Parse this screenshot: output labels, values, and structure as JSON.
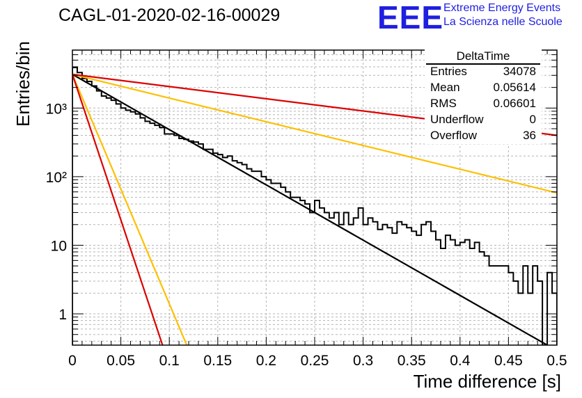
{
  "header": {
    "title": "CAGL-01-2020-02-16-00029",
    "logo_text": "EEE",
    "logo_line1": "Extreme Energy Events",
    "logo_line2": "La Scienza nelle Scuole"
  },
  "stats": {
    "name": "DeltaTime",
    "rows": [
      {
        "label": "Entries",
        "value": "34078"
      },
      {
        "label": "Mean",
        "value": "0.05614"
      },
      {
        "label": "RMS",
        "value": "0.06601"
      },
      {
        "label": "Underflow",
        "value": "0"
      },
      {
        "label": "Overflow",
        "value": "36"
      }
    ]
  },
  "chart_data": {
    "type": "histogram",
    "xlabel": "Time difference [s]",
    "ylabel": "Entries/bin",
    "xlim": [
      0,
      0.5
    ],
    "ylim": [
      0.35,
      7000
    ],
    "y_scale": "log",
    "grid": true,
    "x_ticks": [
      "0",
      "0.05",
      "0.1",
      "0.15",
      "0.2",
      "0.25",
      "0.3",
      "0.35",
      "0.4",
      "0.45",
      "0.5"
    ],
    "y_ticks": [
      "1",
      "10",
      "10²",
      "10³"
    ],
    "bin_width": 0.005,
    "histogram": {
      "color": "#000000",
      "counts": [
        3900,
        3300,
        2700,
        2450,
        2100,
        1780,
        1500,
        1400,
        1300,
        1150,
        1000,
        930,
        880,
        820,
        720,
        640,
        600,
        560,
        520,
        420,
        420,
        400,
        360,
        350,
        330,
        320,
        300,
        250,
        250,
        220,
        210,
        190,
        200,
        170,
        160,
        150,
        130,
        120,
        120,
        100,
        90,
        80,
        80,
        70,
        60,
        50,
        50,
        45,
        40,
        30,
        45,
        35,
        30,
        25,
        30,
        20,
        30,
        20,
        25,
        35,
        20,
        25,
        22,
        17,
        20,
        18,
        15,
        22,
        20,
        18,
        16,
        14,
        20,
        22,
        16,
        12,
        9,
        14,
        12,
        10,
        11,
        12,
        9,
        11,
        8,
        7,
        5,
        5,
        5,
        5,
        4,
        3,
        2,
        5,
        2,
        5,
        3,
        0.3,
        4,
        2
      ]
    },
    "curves": [
      {
        "color": "#000000",
        "x0": 0,
        "y0": 3100,
        "x1": 0.49,
        "y1": 0.35
      },
      {
        "color": "#ffbf00",
        "x0": 0,
        "y0": 3100,
        "x1": 0.5,
        "y1": 58
      },
      {
        "color": "#ffbf00",
        "x0": 0,
        "y0": 3100,
        "x1": 0.118,
        "y1": 0.35
      },
      {
        "color": "#dd0000",
        "x0": 0,
        "y0": 3100,
        "x1": 0.5,
        "y1": 400
      },
      {
        "color": "#dd0000",
        "x0": 0,
        "y0": 3100,
        "x1": 0.093,
        "y1": 0.35
      }
    ]
  }
}
